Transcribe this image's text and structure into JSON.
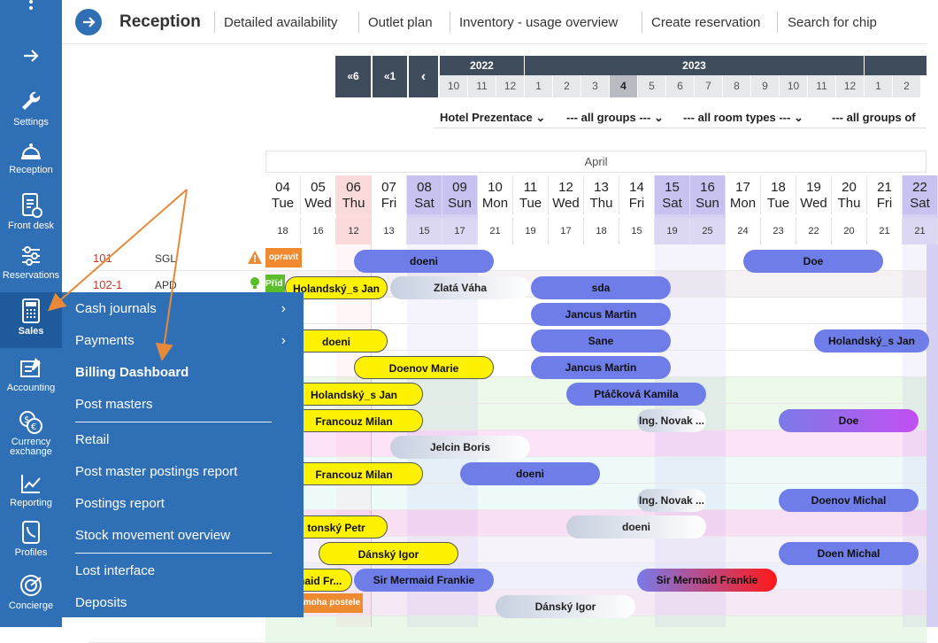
{
  "sidebar": {
    "items": [
      {
        "label": "Settings",
        "icon": "wrench-icon"
      },
      {
        "label": "Reception",
        "icon": "bell-icon"
      },
      {
        "label": "Front desk",
        "icon": "clipboard-icon"
      },
      {
        "label": "Reservations",
        "icon": "sliders-icon"
      },
      {
        "label": "Sales",
        "icon": "calculator-icon"
      },
      {
        "label": "Accounting",
        "icon": "ledger-icon"
      },
      {
        "label": "Currency exchange",
        "icon": "currency-exchange-icon"
      },
      {
        "label": "Reporting",
        "icon": "chart-icon"
      },
      {
        "label": "Profiles",
        "icon": "profile-icon"
      },
      {
        "label": "Concierge",
        "icon": "concierge-icon"
      }
    ]
  },
  "header": {
    "title": "Reception",
    "tabs": [
      "Detailed availability",
      "Outlet plan",
      "Inventory - usage overview",
      "Create reservation",
      "Search for chip"
    ]
  },
  "timeline": {
    "nav": [
      "6",
      "1"
    ],
    "years": [
      "2022",
      "2023"
    ],
    "months": [
      "10",
      "11",
      "12",
      "1",
      "2",
      "3",
      "4",
      "5",
      "6",
      "7",
      "8",
      "9",
      "10",
      "11",
      "12",
      "1",
      "2"
    ],
    "selected_month": "4"
  },
  "filters": [
    "Hotel Prezentace",
    "--- all groups ---",
    "--- all room types ---",
    "--- all groups of"
  ],
  "calendar": {
    "month": "April",
    "days": [
      {
        "n": "04",
        "d": "Tue",
        "c": "18",
        "t": "w"
      },
      {
        "n": "05",
        "d": "Wed",
        "c": "16",
        "t": "w"
      },
      {
        "n": "06",
        "d": "Thu",
        "c": "12",
        "t": "today"
      },
      {
        "n": "07",
        "d": "Fri",
        "c": "13",
        "t": "w"
      },
      {
        "n": "08",
        "d": "Sat",
        "c": "15",
        "t": "we"
      },
      {
        "n": "09",
        "d": "Sun",
        "c": "17",
        "t": "we"
      },
      {
        "n": "10",
        "d": "Mon",
        "c": "21",
        "t": "w"
      },
      {
        "n": "11",
        "d": "Tue",
        "c": "19",
        "t": "w"
      },
      {
        "n": "12",
        "d": "Wed",
        "c": "17",
        "t": "w"
      },
      {
        "n": "13",
        "d": "Thu",
        "c": "18",
        "t": "w"
      },
      {
        "n": "14",
        "d": "Fri",
        "c": "15",
        "t": "w"
      },
      {
        "n": "15",
        "d": "Sat",
        "c": "19",
        "t": "we"
      },
      {
        "n": "16",
        "d": "Sun",
        "c": "25",
        "t": "we"
      },
      {
        "n": "17",
        "d": "Mon",
        "c": "24",
        "t": "w"
      },
      {
        "n": "18",
        "d": "Tue",
        "c": "23",
        "t": "w"
      },
      {
        "n": "19",
        "d": "Wed",
        "c": "22",
        "t": "w"
      },
      {
        "n": "20",
        "d": "Thu",
        "c": "20",
        "t": "w"
      },
      {
        "n": "21",
        "d": "Fri",
        "c": "21",
        "t": "w"
      },
      {
        "n": "22",
        "d": "Sat",
        "c": "21",
        "t": "we"
      }
    ]
  },
  "rooms": [
    {
      "number": "101",
      "type": "SGL",
      "status": "opravit",
      "status_color": "#f08a30"
    },
    {
      "number": "102-1",
      "type": "APD",
      "status": "Příd",
      "status_color": "#5bbd2b"
    }
  ],
  "reservations": [
    {
      "name": "doeni",
      "style": "blue"
    },
    {
      "name": "Doe",
      "style": "blue"
    },
    {
      "name": "Holandský_s Jan",
      "style": "yellow"
    },
    {
      "name": "Zlatá Váha",
      "style": "grey"
    },
    {
      "name": "sda",
      "style": "blue"
    },
    {
      "name": "Jancus Martin",
      "style": "blue"
    },
    {
      "name": "doeni",
      "style": "yellow"
    },
    {
      "name": "Sane",
      "style": "blue"
    },
    {
      "name": "Holandský_s Jan",
      "style": "blue"
    },
    {
      "name": "Doenov Marie",
      "style": "yellow"
    },
    {
      "name": "Jancus Martin",
      "style": "blue"
    },
    {
      "name": "Holandský_s Jan",
      "style": "yellow"
    },
    {
      "name": "Ptáčková Kamila",
      "style": "blue"
    },
    {
      "name": "Francouz Milan",
      "style": "yellow"
    },
    {
      "name": "Ing. Novak ...",
      "style": "grey"
    },
    {
      "name": "Doe",
      "style": "purple"
    },
    {
      "name": "Jelcin Boris",
      "style": "grey"
    },
    {
      "name": "Francouz Milan",
      "style": "yellow"
    },
    {
      "name": "doeni",
      "style": "blue"
    },
    {
      "name": "Ing. Novak ...",
      "style": "grey"
    },
    {
      "name": "Doenov Michal",
      "style": "blue"
    },
    {
      "name": "tonský Petr",
      "style": "yellow"
    },
    {
      "name": "doeni",
      "style": "grey"
    },
    {
      "name": "Dánský Igor",
      "style": "yellow"
    },
    {
      "name": "Doen Michal",
      "style": "blue"
    },
    {
      "name": "maid Fr...",
      "style": "yellow"
    },
    {
      "name": "Sir Mermaid Frankie",
      "style": "blue"
    },
    {
      "name": "Sir Mermaid Frankie",
      "style": "red"
    },
    {
      "name": "Dánský Igor",
      "style": "grey"
    }
  ],
  "badges": {
    "moha": "moha postele"
  },
  "menu": {
    "items": [
      {
        "label": "Cash journals",
        "arrow": true
      },
      {
        "label": "Payments",
        "arrow": true
      },
      {
        "label": "Billing Dashboard",
        "bold": true
      },
      {
        "label": "Post masters"
      },
      {
        "label": "Retail"
      },
      {
        "label": "Post master postings report"
      },
      {
        "label": "Postings report"
      },
      {
        "label": "Stock movement overview"
      },
      {
        "label": "Lost interface"
      },
      {
        "label": "Deposits"
      }
    ]
  },
  "colors": {
    "sidebar": "#2f6fb5",
    "yellow_bar": "#fff200",
    "blue_bar": "#6f7de8",
    "annotation_arrow": "#e8893a"
  }
}
